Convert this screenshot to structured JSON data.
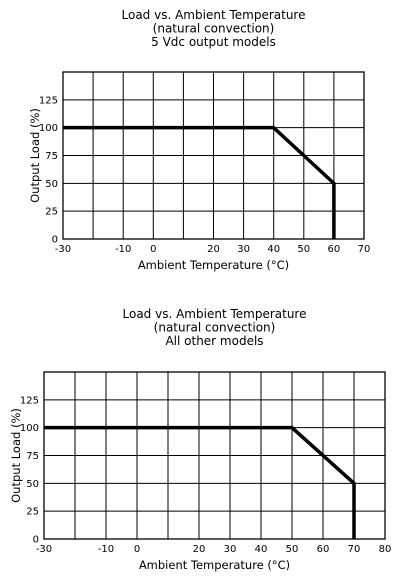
{
  "chart_data": [
    {
      "type": "line",
      "title_lines": [
        "Load vs. Ambient Temperature",
        "(natural convection)",
        "5 Vdc output models"
      ],
      "xlabel": "Ambient Temperature (°C)",
      "ylabel": "Output Load (%)",
      "xlim": [
        -30,
        70
      ],
      "ylim": [
        0,
        150
      ],
      "xticks": [
        -30,
        -10,
        0,
        20,
        30,
        40,
        50,
        60,
        70
      ],
      "xgrid": [
        -20,
        -10,
        0,
        10,
        20,
        30,
        40,
        50,
        60
      ],
      "yticks": [
        0,
        25,
        50,
        75,
        100,
        125
      ],
      "ygrid": [
        25,
        50,
        75,
        100,
        125
      ],
      "grid": true,
      "series": [
        {
          "x": [
            -30,
            40,
            60,
            60
          ],
          "y": [
            100,
            100,
            50,
            0
          ]
        }
      ]
    },
    {
      "type": "line",
      "title_lines": [
        "Load vs. Ambient Temperature",
        "(natural convection)",
        "All other models"
      ],
      "xlabel": "Ambient Temperature (°C)",
      "ylabel": "Output Load (%)",
      "xlim": [
        -30,
        80
      ],
      "ylim": [
        0,
        150
      ],
      "xticks": [
        -30,
        -10,
        0,
        20,
        30,
        40,
        50,
        60,
        70,
        80
      ],
      "xgrid": [
        -20,
        -10,
        0,
        10,
        20,
        30,
        40,
        50,
        60,
        70
      ],
      "yticks": [
        0,
        25,
        50,
        75,
        100,
        125
      ],
      "ygrid": [
        25,
        50,
        75,
        100,
        125
      ],
      "grid": true,
      "series": [
        {
          "x": [
            -30,
            50,
            70,
            70
          ],
          "y": [
            100,
            100,
            50,
            0
          ]
        }
      ]
    }
  ]
}
